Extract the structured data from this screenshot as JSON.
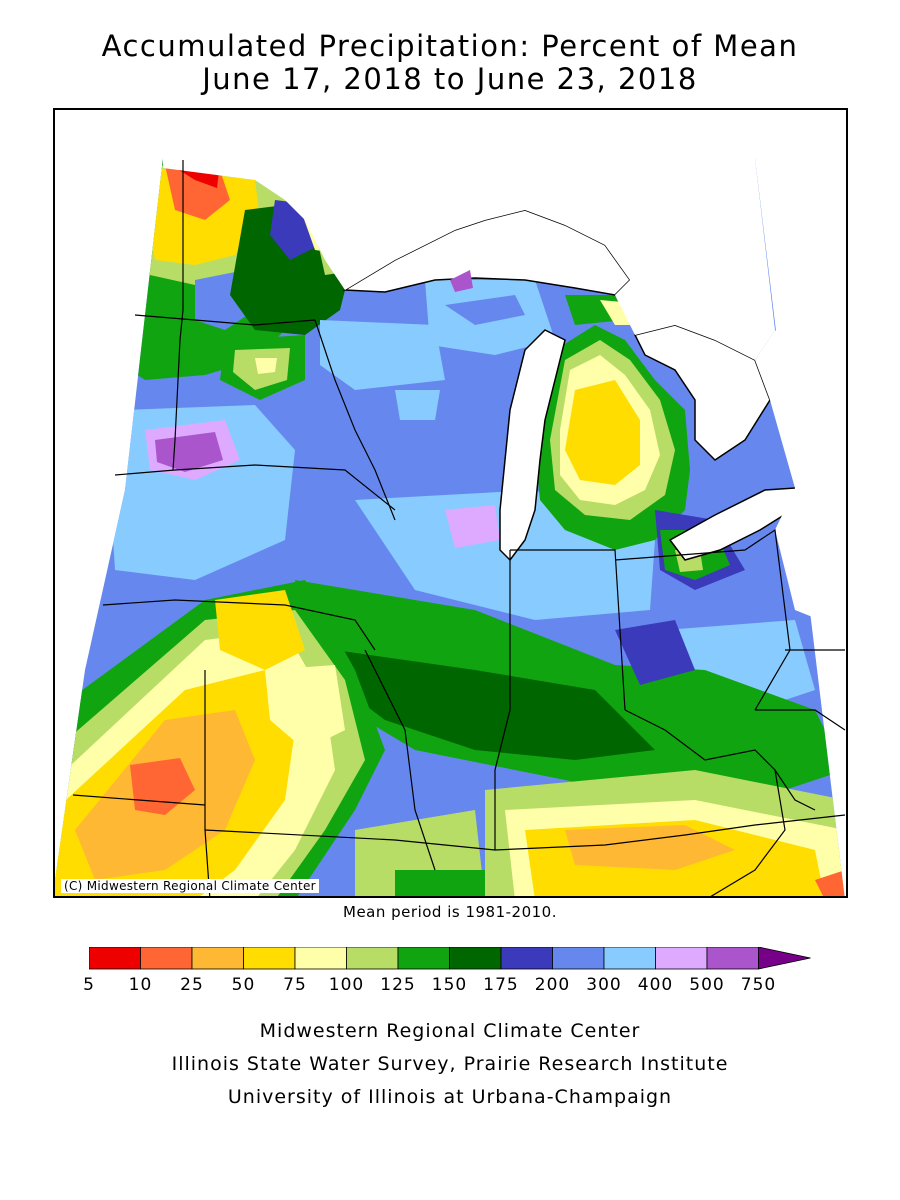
{
  "title_line1": "Accumulated Precipitation: Percent of Mean",
  "title_line2": "June 17, 2018 to June 23, 2018",
  "copyright": "(C) Midwestern Regional Climate Center",
  "mean_note": "Mean period is 1981-2010.",
  "legend": {
    "ticks": [
      "5",
      "10",
      "25",
      "50",
      "75",
      "100",
      "125",
      "150",
      "175",
      "200",
      "300",
      "400",
      "500",
      "750"
    ],
    "colors": [
      "#ee0000",
      "#ff6633",
      "#ffb833",
      "#ffdd00",
      "#ffffaa",
      "#b8dd66",
      "#11a411",
      "#006600",
      "#3a3aba",
      "#6688ee",
      "#88ccff",
      "#ddaaff",
      "#aa55cc",
      "#770088"
    ]
  },
  "footer": {
    "line1": "Midwestern Regional Climate Center",
    "line2": "Illinois State Water Survey, Prairie Research Institute",
    "line3": "University of Illinois at Urbana-Champaign"
  }
}
